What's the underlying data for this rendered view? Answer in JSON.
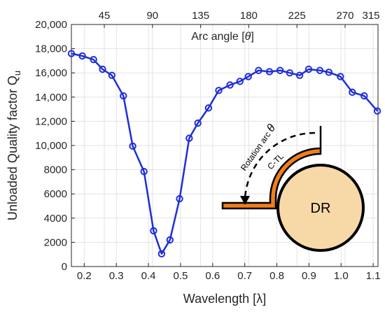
{
  "chart_data": {
    "type": "line",
    "xlabel_prefix": "Wavelength [",
    "xlabel_symbol": "λ",
    "xlabel_suffix": "]",
    "ylabel": "Unloaded Quality factor Q",
    "ylabel_subscript": "u",
    "top_axis_label_prefix": "Arc angle [",
    "top_axis_label_symbol": "θ",
    "top_axis_label_suffix": "]",
    "xlim": [
      0.16,
      1.115
    ],
    "ylim": [
      0,
      20000
    ],
    "x_ticks": [
      0.2,
      0.3,
      0.4,
      0.5,
      0.6,
      0.7,
      0.8,
      0.9,
      1.0,
      1.1
    ],
    "x_tick_labels": [
      "0.2",
      "0.3",
      "0.4",
      "0.5",
      "0.6",
      "0.7",
      "0.8",
      "0.9",
      "1.0",
      "1.1"
    ],
    "y_ticks": [
      0,
      2000,
      4000,
      6000,
      8000,
      10000,
      12000,
      14000,
      16000,
      18000,
      20000
    ],
    "y_tick_labels": [
      "0",
      "2000",
      "4000",
      "6000",
      "8000",
      "10,000",
      "12,000",
      "14,000",
      "16,000",
      "18,000",
      "20,000"
    ],
    "top_ticks_x": [
      0.2625,
      0.4125,
      0.5625,
      0.7125,
      0.8625,
      1.0125,
      1.1625
    ],
    "top_tick_labels": [
      "45",
      "90",
      "135",
      "180",
      "225",
      "270",
      "315"
    ],
    "grid": true,
    "series": [
      {
        "color": "#1f2fd6",
        "marker": "circle",
        "x": [
          0.16,
          0.194,
          0.229,
          0.257,
          0.286,
          0.322,
          0.351,
          0.386,
          0.416,
          0.441,
          0.467,
          0.497,
          0.527,
          0.554,
          0.587,
          0.619,
          0.654,
          0.685,
          0.711,
          0.743,
          0.777,
          0.81,
          0.84,
          0.871,
          0.899,
          0.934,
          0.962,
          0.998,
          1.035,
          1.072,
          1.113
        ],
        "values": [
          17600,
          17400,
          17100,
          16300,
          15800,
          14100,
          9950,
          7850,
          2950,
          1050,
          2200,
          5600,
          10600,
          11850,
          13100,
          14550,
          15000,
          15300,
          15700,
          16200,
          16100,
          16200,
          16000,
          15800,
          16300,
          16200,
          16050,
          15700,
          14400,
          14100,
          12850
        ]
      }
    ]
  },
  "inset": {
    "rotation_label": "Rotation arc",
    "rotation_symbol": "θ",
    "ctl_label": "C-TL",
    "dr_label": "DR",
    "dr_fill": "#f7d9a8",
    "strip_fill": "#f07e1e"
  }
}
